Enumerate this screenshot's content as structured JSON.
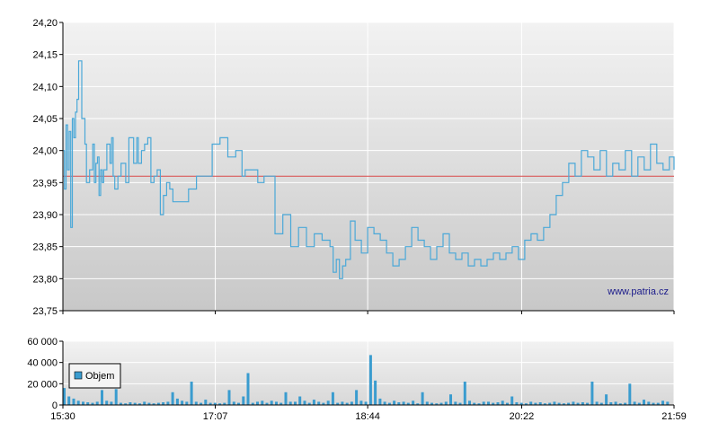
{
  "chart_data": [
    {
      "type": "line",
      "title": "",
      "xlabel": "",
      "ylabel": "",
      "ylim": [
        23.75,
        24.2
      ],
      "yticks": [
        "24,20",
        "24,15",
        "24,10",
        "24,05",
        "24,00",
        "23,95",
        "23,90",
        "23,85",
        "23,80",
        "23,75"
      ],
      "xticks": [
        "15:30",
        "17:07",
        "18:44",
        "20:22",
        "21:59"
      ],
      "reference_line": {
        "value": 23.96,
        "color": "#d94a4a"
      },
      "line_color": "#4aa8d8",
      "grid": true,
      "watermark": "www.patria.cz",
      "x": [
        "15:30",
        "15:31",
        "15:32",
        "15:33",
        "15:34",
        "15:35",
        "15:36",
        "15:37",
        "15:38",
        "15:39",
        "15:40",
        "15:42",
        "15:44",
        "15:45",
        "15:47",
        "15:49",
        "15:50",
        "15:51",
        "15:52",
        "15:53",
        "15:54",
        "15:55",
        "15:56",
        "15:58",
        "16:00",
        "16:01",
        "16:02",
        "16:03",
        "16:05",
        "16:07",
        "16:10",
        "16:12",
        "16:15",
        "16:17",
        "16:18",
        "16:20",
        "16:22",
        "16:24",
        "16:26",
        "16:28",
        "16:30",
        "16:32",
        "16:34",
        "16:36",
        "16:38",
        "16:40",
        "16:45",
        "16:50",
        "16:55",
        "17:00",
        "17:05",
        "17:10",
        "17:15",
        "17:20",
        "17:24",
        "17:26",
        "17:28",
        "17:30",
        "17:34",
        "17:38",
        "17:42",
        "17:45",
        "17:50",
        "17:55",
        "18:00",
        "18:05",
        "18:10",
        "18:15",
        "18:20",
        "18:22",
        "18:24",
        "18:26",
        "18:28",
        "18:30",
        "18:33",
        "18:36",
        "18:40",
        "18:44",
        "18:48",
        "18:52",
        "18:56",
        "19:00",
        "19:04",
        "19:08",
        "19:12",
        "19:16",
        "19:20",
        "19:24",
        "19:28",
        "19:32",
        "19:36",
        "19:40",
        "19:44",
        "19:48",
        "19:52",
        "19:56",
        "20:00",
        "20:04",
        "20:08",
        "20:12",
        "20:16",
        "20:20",
        "20:24",
        "20:28",
        "20:32",
        "20:36",
        "20:40",
        "20:44",
        "20:48",
        "20:52",
        "20:56",
        "21:00",
        "21:04",
        "21:08",
        "21:12",
        "21:16",
        "21:20",
        "21:24",
        "21:28",
        "21:32",
        "21:36",
        "21:40",
        "21:44",
        "21:48",
        "21:52",
        "21:56",
        "21:59"
      ],
      "series": [
        {
          "name": "",
          "values": [
            24.0,
            23.94,
            24.04,
            23.97,
            24.03,
            23.88,
            24.05,
            24.02,
            24.06,
            24.08,
            24.14,
            24.05,
            24.01,
            23.95,
            23.97,
            24.01,
            23.95,
            23.98,
            23.99,
            23.93,
            23.97,
            23.95,
            23.97,
            24.01,
            23.98,
            24.02,
            23.96,
            23.94,
            23.96,
            23.98,
            23.95,
            24.02,
            23.98,
            24.02,
            23.98,
            24.0,
            24.01,
            24.02,
            23.95,
            23.96,
            23.97,
            23.9,
            23.93,
            23.95,
            23.94,
            23.92,
            23.92,
            23.94,
            23.96,
            23.96,
            24.01,
            24.02,
            23.99,
            24.0,
            23.96,
            23.97,
            23.97,
            23.97,
            23.95,
            23.96,
            23.96,
            23.87,
            23.9,
            23.85,
            23.88,
            23.85,
            23.87,
            23.86,
            23.85,
            23.81,
            23.83,
            23.8,
            23.82,
            23.83,
            23.89,
            23.86,
            23.84,
            23.88,
            23.87,
            23.86,
            23.84,
            23.82,
            23.83,
            23.85,
            23.88,
            23.86,
            23.85,
            23.83,
            23.85,
            23.87,
            23.84,
            23.83,
            23.84,
            23.82,
            23.83,
            23.82,
            23.83,
            23.84,
            23.83,
            23.84,
            23.85,
            23.83,
            23.86,
            23.87,
            23.86,
            23.88,
            23.9,
            23.93,
            23.95,
            23.98,
            23.96,
            24.0,
            23.99,
            23.97,
            24.0,
            23.96,
            23.98,
            23.97,
            24.0,
            23.96,
            23.99,
            23.97,
            24.01,
            23.98,
            23.97,
            23.99,
            23.97
          ]
        }
      ]
    },
    {
      "type": "bar",
      "title": "",
      "xlabel": "",
      "ylabel": "",
      "ylim": [
        0,
        60000
      ],
      "yticks": [
        "60 000",
        "40 000",
        "20 000",
        "0"
      ],
      "xticks": [
        "15:30",
        "17:07",
        "18:44",
        "20:22",
        "21:59"
      ],
      "legend": {
        "label": "Objem",
        "placement": "top-left"
      },
      "bar_color": "#3a9ccf",
      "grid": true,
      "x_minutes": [
        0,
        3,
        6,
        9,
        12,
        15,
        18,
        21,
        24,
        27,
        30,
        33,
        36,
        39,
        42,
        45,
        48,
        51,
        54,
        57,
        60,
        63,
        66,
        69,
        72,
        75,
        78,
        81,
        84,
        87,
        90,
        93,
        96,
        99,
        102,
        105,
        108,
        111,
        114,
        117,
        120,
        123,
        126,
        129,
        132,
        135,
        138,
        141,
        144,
        147,
        150,
        153,
        156,
        159,
        162,
        165,
        168,
        171,
        174,
        177,
        180,
        183,
        186,
        189,
        192,
        195,
        198,
        201,
        204,
        207,
        210,
        213,
        216,
        219,
        222,
        225,
        228,
        231,
        234,
        237,
        240,
        243,
        246,
        249,
        252,
        255,
        258,
        261,
        264,
        267,
        270,
        273,
        276,
        279,
        282,
        285,
        288,
        291,
        294,
        297,
        300,
        303,
        306,
        309,
        312,
        315,
        318,
        321,
        324,
        327,
        330,
        333,
        336,
        339,
        342,
        345,
        348,
        351,
        354,
        357,
        360,
        363,
        366,
        369,
        372,
        375,
        378,
        381,
        384,
        387
      ],
      "series": [
        {
          "name": "Objem",
          "values": [
            16000,
            8000,
            6000,
            4000,
            3000,
            2500,
            2000,
            3000,
            14000,
            4000,
            3000,
            15000,
            2000,
            1500,
            2500,
            2000,
            1500,
            3000,
            2000,
            1500,
            2000,
            2500,
            3000,
            12000,
            6000,
            4000,
            3000,
            22000,
            3000,
            2000,
            5000,
            2000,
            2000,
            1500,
            2000,
            14000,
            3000,
            2000,
            8000,
            30000,
            2000,
            3000,
            4000,
            2000,
            4000,
            3000,
            2000,
            12000,
            3000,
            3000,
            8000,
            4000,
            2000,
            5000,
            3000,
            2000,
            4000,
            12000,
            2000,
            3000,
            2000,
            3000,
            14000,
            4000,
            3000,
            47000,
            23000,
            6000,
            3000,
            2000,
            4000,
            2500,
            3000,
            2000,
            4000,
            1500,
            12000,
            3000,
            2000,
            1500,
            2000,
            3000,
            10000,
            3000,
            2000,
            22000,
            4000,
            2000,
            1500,
            3000,
            3000,
            2000,
            2500,
            4000,
            2000,
            8000,
            2500,
            2000,
            1500,
            3000,
            2000,
            2500,
            1500,
            2000,
            3000,
            2000,
            1500,
            2000,
            3000,
            2000,
            2500,
            2000,
            22000,
            3000,
            2000,
            10000,
            2500,
            3000,
            1500,
            2000,
            20000,
            3000,
            2000,
            5000,
            3000,
            2000,
            2000,
            4000,
            3000
          ]
        }
      ]
    }
  ]
}
